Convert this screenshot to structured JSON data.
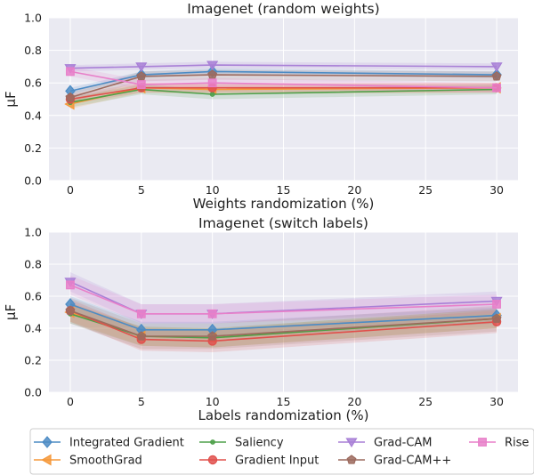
{
  "chart_data": [
    {
      "type": "line",
      "title": "Imagenet (random weights)",
      "xlabel": "Weights randomization (%)",
      "ylabel": "μF",
      "x": [
        0,
        5,
        10,
        30
      ],
      "xticks": [
        "0",
        "5",
        "10",
        "15",
        "20",
        "25",
        "30"
      ],
      "yticks": [
        "0.0",
        "0.2",
        "0.4",
        "0.6",
        "0.8",
        "1.0"
      ],
      "xlim": [
        -1.5,
        31.5
      ],
      "ylim": [
        0,
        1
      ],
      "grid": true,
      "series": [
        {
          "name": "Integrated Gradient",
          "values": [
            0.55,
            0.65,
            0.67,
            0.65
          ],
          "band": 0.02
        },
        {
          "name": "SmoothGrad",
          "values": [
            0.47,
            0.57,
            0.56,
            0.57
          ],
          "band": 0.03
        },
        {
          "name": "Saliency",
          "values": [
            0.48,
            0.56,
            0.53,
            0.56
          ],
          "band": 0.03
        },
        {
          "name": "Gradient Input",
          "values": [
            0.5,
            0.57,
            0.57,
            0.57
          ],
          "band": 0.03
        },
        {
          "name": "Grad-CAM",
          "values": [
            0.69,
            0.7,
            0.71,
            0.7
          ],
          "band": 0.02
        },
        {
          "name": "Grad-CAM++",
          "values": [
            0.51,
            0.64,
            0.65,
            0.64
          ],
          "band": 0.03
        },
        {
          "name": "Rise",
          "values": [
            0.67,
            0.59,
            0.6,
            0.57
          ],
          "band": 0.03
        }
      ]
    },
    {
      "type": "line",
      "title": "Imagenet (switch labels)",
      "xlabel": "Labels randomization (%)",
      "ylabel": "μF",
      "x": [
        0,
        5,
        10,
        30
      ],
      "xticks": [
        "0",
        "5",
        "10",
        "15",
        "20",
        "25",
        "30"
      ],
      "yticks": [
        "0.0",
        "0.2",
        "0.4",
        "0.6",
        "0.8",
        "1.0"
      ],
      "xlim": [
        -1.5,
        31.5
      ],
      "ylim": [
        0,
        1
      ],
      "grid": true,
      "series": [
        {
          "name": "Integrated Gradient",
          "values": [
            0.55,
            0.39,
            0.39,
            0.48
          ],
          "band": 0.05
        },
        {
          "name": "SmoothGrad",
          "values": [
            0.5,
            0.35,
            0.34,
            0.46
          ],
          "band": 0.06
        },
        {
          "name": "Saliency",
          "values": [
            0.49,
            0.35,
            0.34,
            0.46
          ],
          "band": 0.06
        },
        {
          "name": "Gradient Input",
          "values": [
            0.51,
            0.33,
            0.32,
            0.44
          ],
          "band": 0.07
        },
        {
          "name": "Grad-CAM",
          "values": [
            0.69,
            0.49,
            0.49,
            0.57
          ],
          "band": 0.06
        },
        {
          "name": "Grad-CAM++",
          "values": [
            0.51,
            0.35,
            0.35,
            0.46
          ],
          "band": 0.08
        },
        {
          "name": "Rise",
          "values": [
            0.67,
            0.49,
            0.49,
            0.55
          ],
          "band": 0.06
        }
      ]
    }
  ],
  "legend": {
    "placement": "bottom",
    "entries": [
      {
        "name": "Integrated Gradient",
        "color": "#4c8bc4",
        "marker": "diamond"
      },
      {
        "name": "Saliency",
        "color": "#4ea04a",
        "marker": "dot"
      },
      {
        "name": "Grad-CAM",
        "color": "#a87fd6",
        "marker": "triangle-down"
      },
      {
        "name": "Rise",
        "color": "#e87fc9",
        "marker": "square"
      },
      {
        "name": "SmoothGrad",
        "color": "#f5983a",
        "marker": "triangle-left"
      },
      {
        "name": "Gradient Input",
        "color": "#e0504c",
        "marker": "circle"
      },
      {
        "name": "Grad-CAM++",
        "color": "#9c6a5e",
        "marker": "pentagon"
      }
    ]
  },
  "style": {
    "plot_background": "#eaeaf2",
    "grid_color": "#ffffff"
  }
}
